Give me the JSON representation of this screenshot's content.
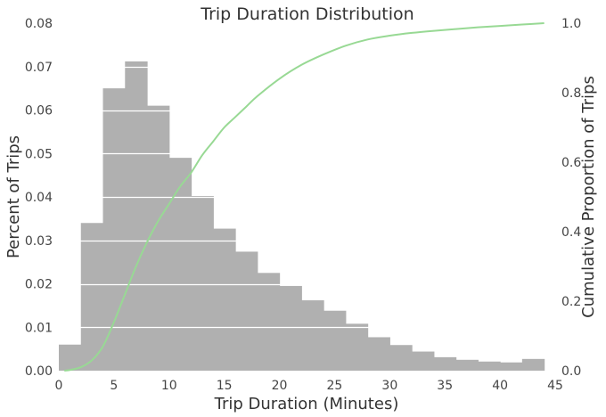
{
  "chart_data": {
    "type": "bar",
    "title": "Trip Duration Distribution",
    "xlabel": "Trip Duration (Minutes)",
    "ylabel": "Percent of Trips",
    "y2label": "Cumulative Proportion of Trips",
    "xlim": [
      0,
      45
    ],
    "ylim": [
      0,
      0.08
    ],
    "y2lim": [
      0,
      1.0
    ],
    "x_ticks": [
      "0",
      "5",
      "10",
      "15",
      "20",
      "25",
      "30",
      "35",
      "40",
      "45"
    ],
    "y_ticks": [
      "0.00",
      "0.01",
      "0.02",
      "0.03",
      "0.04",
      "0.05",
      "0.06",
      "0.07",
      "0.08"
    ],
    "y2_ticks": [
      "0.0",
      "0.2",
      "0.4",
      "0.6",
      "0.8",
      "1.0"
    ],
    "grid": "horizontal",
    "colors": {
      "bars": "#b0b0b0",
      "cdf_line": "#98d994",
      "grid": "#ffffff"
    },
    "histogram": {
      "bin_edges": [
        0,
        2,
        4,
        6,
        8,
        10,
        12,
        14,
        16,
        18,
        20,
        22,
        24,
        26,
        28,
        30,
        32,
        34,
        36,
        38,
        40,
        42,
        44
      ],
      "values": [
        0.006,
        0.034,
        0.065,
        0.0712,
        0.061,
        0.049,
        0.0402,
        0.0327,
        0.0274,
        0.0225,
        0.0195,
        0.0162,
        0.0138,
        0.0108,
        0.0077,
        0.0059,
        0.0044,
        0.0031,
        0.0025,
        0.0021,
        0.0019,
        0.0027
      ]
    },
    "cdf": {
      "x": [
        0.5,
        1,
        2,
        3,
        4,
        5,
        6,
        7,
        8,
        9,
        10,
        11,
        12,
        13,
        14,
        15,
        16,
        17,
        18,
        20,
        22,
        24,
        26,
        28,
        30,
        32,
        34,
        36,
        38,
        40,
        42,
        44
      ],
      "y": [
        0.0,
        0.002,
        0.01,
        0.03,
        0.07,
        0.14,
        0.22,
        0.3,
        0.37,
        0.43,
        0.48,
        0.53,
        0.57,
        0.62,
        0.66,
        0.7,
        0.73,
        0.76,
        0.79,
        0.84,
        0.88,
        0.91,
        0.935,
        0.953,
        0.964,
        0.972,
        0.978,
        0.983,
        0.988,
        0.992,
        0.996,
        1.0
      ]
    }
  }
}
